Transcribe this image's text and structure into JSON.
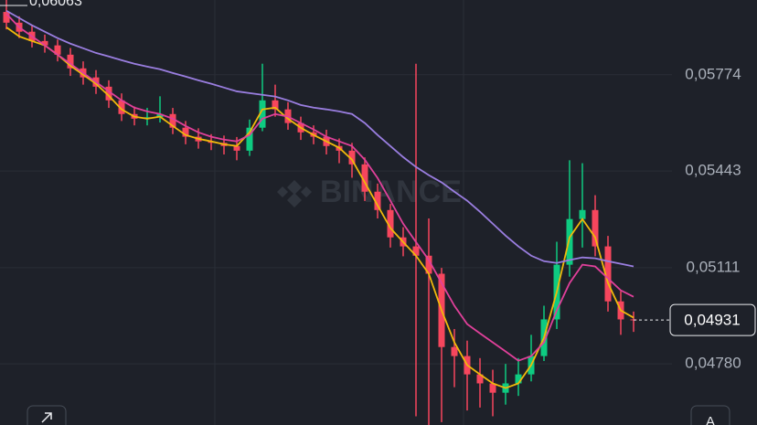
{
  "chart_data": {
    "type": "candlestick",
    "watermark": "BINANCE",
    "max_label": {
      "value": 0.06063,
      "label": "0,06063"
    },
    "last_price": {
      "value": 0.04931,
      "label": "0,04931"
    },
    "button_label": "A",
    "ylim": [
      0.0457,
      0.06031
    ],
    "yticks": [
      {
        "value": 0.05774,
        "label": "0,05774"
      },
      {
        "value": 0.05443,
        "label": "0,05443"
      },
      {
        "value": 0.05111,
        "label": "0,05111"
      },
      {
        "value": 0.0478,
        "label": "0,04780"
      }
    ],
    "grid": true,
    "up_color": "#0ecb81",
    "down_color": "#f6465d",
    "open": [
      0.0599,
      0.05953,
      0.05922,
      0.0589,
      0.05875,
      0.05843,
      0.05796,
      0.05765,
      0.05733,
      0.05686,
      0.05639,
      0.05623,
      0.05628,
      0.05639,
      0.05592,
      0.05561,
      0.05545,
      0.0554,
      0.05529,
      0.05513,
      0.05592,
      0.05686,
      0.05655,
      0.05608,
      0.05576,
      0.05561,
      0.05529,
      0.05513,
      0.05466,
      0.05372,
      0.05309,
      0.05215,
      0.05184,
      0.05152,
      0.0509,
      0.04838,
      0.04807,
      0.04744,
      0.04713,
      0.04681,
      0.04713,
      0.04744,
      0.04807,
      0.04933,
      0.05121,
      0.05278,
      0.05309,
      0.05184,
      0.04995,
      0.04933
    ],
    "high": [
      0.06063,
      0.05975,
      0.05945,
      0.05912,
      0.05895,
      0.05866,
      0.0582,
      0.0579,
      0.05755,
      0.0571,
      0.05665,
      0.0566,
      0.057,
      0.0566,
      0.05615,
      0.0559,
      0.0557,
      0.05565,
      0.0556,
      0.0562,
      0.05812,
      0.0574,
      0.0568,
      0.0563,
      0.056,
      0.05585,
      0.05555,
      0.0554,
      0.0549,
      0.054,
      0.0533,
      0.0525,
      0.05812,
      0.0528,
      0.0511,
      0.049,
      0.0486,
      0.048,
      0.0476,
      0.0478,
      0.048,
      0.0488,
      0.0498,
      0.052,
      0.0548,
      0.0547,
      0.0536,
      0.0522,
      0.0503,
      0.0496
    ],
    "low": [
      0.0593,
      0.059,
      0.05868,
      0.0585,
      0.0582,
      0.0577,
      0.0574,
      0.05708,
      0.0566,
      0.05615,
      0.056,
      0.056,
      0.0561,
      0.0557,
      0.05535,
      0.0552,
      0.05515,
      0.055,
      0.0548,
      0.05495,
      0.0558,
      0.0563,
      0.05585,
      0.0555,
      0.05535,
      0.055,
      0.0547,
      0.0542,
      0.0534,
      0.0528,
      0.0518,
      0.0515,
      0.046,
      0.0457,
      0.0458,
      0.047,
      0.0462,
      0.0463,
      0.046,
      0.0464,
      0.0467,
      0.0472,
      0.0479,
      0.049,
      0.0508,
      0.0518,
      0.0515,
      0.0496,
      0.0488,
      0.0489
    ],
    "close": [
      0.05953,
      0.05922,
      0.0589,
      0.05875,
      0.05843,
      0.05796,
      0.05765,
      0.05733,
      0.05686,
      0.05639,
      0.05623,
      0.05628,
      0.05639,
      0.05592,
      0.05561,
      0.05545,
      0.0554,
      0.05529,
      0.05513,
      0.05592,
      0.05686,
      0.05655,
      0.05608,
      0.05576,
      0.05561,
      0.05529,
      0.05513,
      0.05466,
      0.05372,
      0.05309,
      0.05215,
      0.05184,
      0.05152,
      0.0509,
      0.04838,
      0.04807,
      0.04744,
      0.04713,
      0.04681,
      0.04713,
      0.04744,
      0.04807,
      0.04933,
      0.05121,
      0.05278,
      0.05309,
      0.05184,
      0.04995,
      0.04933,
      0.04931
    ],
    "ma": [
      {
        "color": "#f0b90b",
        "values": [
          0.05937,
          0.05906,
          0.0589,
          0.05875,
          0.05843,
          0.05805,
          0.05774,
          0.05743,
          0.05702,
          0.05655,
          0.0563,
          0.05623,
          0.0563,
          0.05598,
          0.05567,
          0.05554,
          0.05545,
          0.05535,
          0.05529,
          0.05576,
          0.05655,
          0.05661,
          0.05623,
          0.05592,
          0.05567,
          0.05545,
          0.05523,
          0.05482,
          0.05404,
          0.05325,
          0.05247,
          0.05199,
          0.05152,
          0.0509,
          0.04964,
          0.04854,
          0.04776,
          0.04744,
          0.04713,
          0.04697,
          0.04713,
          0.04776,
          0.0487,
          0.05027,
          0.05215,
          0.05278,
          0.05215,
          0.05058,
          0.04964,
          0.04939
        ]
      },
      {
        "color": "#e0409a",
        "values": [
          0.05984,
          0.05937,
          0.05906,
          0.05875,
          0.05843,
          0.05812,
          0.0578,
          0.05749,
          0.05717,
          0.05686,
          0.05661,
          0.05648,
          0.05639,
          0.05623,
          0.05598,
          0.05576,
          0.05561,
          0.05551,
          0.05545,
          0.05567,
          0.05623,
          0.05639,
          0.0563,
          0.05608,
          0.05586,
          0.05561,
          0.05545,
          0.05529,
          0.05482,
          0.05419,
          0.05341,
          0.05262,
          0.05199,
          0.05137,
          0.05058,
          0.0498,
          0.04917,
          0.04885,
          0.04854,
          0.04823,
          0.04791,
          0.04807,
          0.04854,
          0.04964,
          0.05058,
          0.05121,
          0.05115,
          0.05074,
          0.05033,
          0.05011
        ]
      },
      {
        "color": "#9a7ee0",
        "values": [
          0.05994,
          0.05969,
          0.05944,
          0.05922,
          0.059,
          0.05881,
          0.05865,
          0.05849,
          0.05837,
          0.05824,
          0.05812,
          0.05802,
          0.05793,
          0.0578,
          0.05768,
          0.05755,
          0.05743,
          0.0573,
          0.05717,
          0.05711,
          0.05705,
          0.05699,
          0.05686,
          0.0567,
          0.05661,
          0.05655,
          0.05648,
          0.05639,
          0.05608,
          0.05567,
          0.05529,
          0.05491,
          0.05457,
          0.05429,
          0.05404,
          0.05372,
          0.05341,
          0.05303,
          0.05262,
          0.05221,
          0.05184,
          0.05152,
          0.05133,
          0.05127,
          0.05137,
          0.05146,
          0.05143,
          0.05133,
          0.05124,
          0.05115
        ]
      }
    ]
  }
}
